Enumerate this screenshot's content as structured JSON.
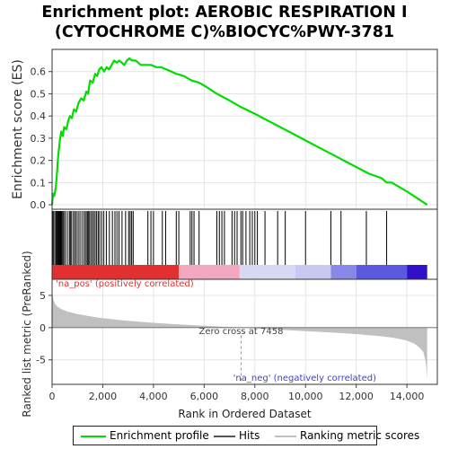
{
  "title_line1": "Enrichment plot: AEROBIC RESPIRATION I",
  "title_line2": "(CYTOCHROME C)%BIOCYC%PWY-3781",
  "chart_data": {
    "type": "line",
    "es_panel": {
      "ylabel": "Enrichment score (ES)",
      "ylim": [
        -0.02,
        0.7
      ],
      "yticks": [
        0.0,
        0.1,
        0.2,
        0.3,
        0.4,
        0.5,
        0.6
      ],
      "ytick_labels": [
        "0.0",
        "0.1",
        "0.2",
        "0.3",
        "0.4",
        "0.5",
        "0.6"
      ],
      "grid": true,
      "series": [
        {
          "name": "Enrichment profile",
          "color": "#00dd00",
          "x": [
            0,
            40,
            90,
            150,
            200,
            240,
            280,
            320,
            360,
            420,
            480,
            560,
            640,
            700,
            780,
            860,
            950,
            1050,
            1150,
            1250,
            1350,
            1420,
            1500,
            1600,
            1700,
            1780,
            1860,
            1950,
            2050,
            2150,
            2250,
            2350,
            2450,
            2550,
            2650,
            2750,
            2850,
            2950,
            3050,
            3150,
            3300,
            3500,
            3700,
            3900,
            4100,
            4300,
            4500,
            4700,
            4900,
            5200,
            5500,
            5800,
            6100,
            6500,
            7000,
            7458,
            8000,
            8500,
            9000,
            9500,
            10000,
            10500,
            11000,
            11500,
            12000,
            12500,
            13000,
            13200,
            13400,
            13700,
            14000,
            14400,
            14800
          ],
          "values": [
            0.0,
            0.05,
            0.04,
            0.08,
            0.15,
            0.22,
            0.26,
            0.3,
            0.33,
            0.31,
            0.35,
            0.34,
            0.38,
            0.4,
            0.39,
            0.43,
            0.42,
            0.46,
            0.48,
            0.47,
            0.51,
            0.5,
            0.56,
            0.55,
            0.59,
            0.58,
            0.61,
            0.62,
            0.6,
            0.62,
            0.61,
            0.63,
            0.65,
            0.64,
            0.65,
            0.64,
            0.63,
            0.65,
            0.66,
            0.65,
            0.65,
            0.63,
            0.63,
            0.63,
            0.62,
            0.62,
            0.61,
            0.6,
            0.59,
            0.58,
            0.56,
            0.55,
            0.53,
            0.5,
            0.47,
            0.44,
            0.41,
            0.38,
            0.35,
            0.32,
            0.29,
            0.26,
            0.23,
            0.2,
            0.17,
            0.14,
            0.12,
            0.1,
            0.1,
            0.08,
            0.06,
            0.03,
            0.0
          ]
        }
      ]
    },
    "hits": [
      20,
      60,
      110,
      160,
      190,
      230,
      260,
      290,
      320,
      350,
      380,
      420,
      460,
      520,
      600,
      680,
      720,
      770,
      840,
      900,
      960,
      1030,
      1100,
      1180,
      1260,
      1320,
      1380,
      1420,
      1460,
      1520,
      1580,
      1640,
      1700,
      1760,
      1820,
      1880,
      1960,
      2040,
      2140,
      2260,
      2380,
      2480,
      2560,
      2640,
      2760,
      2900,
      3020,
      3080,
      3140,
      3200,
      3780,
      3900,
      4000,
      4350,
      4480,
      4900,
      5000,
      5450,
      5520,
      5600,
      5800,
      6500,
      6600,
      6700,
      6800,
      7100,
      7200,
      7300,
      7450,
      7520,
      7650,
      7800,
      7900,
      8000,
      8100,
      8400,
      8900,
      9200,
      10000,
      11000,
      11400,
      12400,
      13200
    ],
    "heatmap_bar": {
      "segments": [
        {
          "from": 0,
          "to": 5000,
          "color": "#e23030"
        },
        {
          "from": 5000,
          "to": 7400,
          "color": "#f4a8c0"
        },
        {
          "from": 7400,
          "to": 9600,
          "color": "#d8d8f4"
        },
        {
          "from": 9600,
          "to": 11000,
          "color": "#c8c8f0"
        },
        {
          "from": 11000,
          "to": 12000,
          "color": "#8888e8"
        },
        {
          "from": 12000,
          "to": 14000,
          "color": "#5a5ae0"
        },
        {
          "from": 14000,
          "to": 14800,
          "color": "#3010c8"
        }
      ]
    },
    "ranked_panel": {
      "ylabel": "Ranked list metric (PreRanked)",
      "xlabel": "Rank in Ordered Dataset",
      "ylim": [
        -8.8,
        7.5
      ],
      "yticks": [
        5,
        0,
        -5
      ],
      "ytick_labels": [
        "5",
        "0",
        "-5"
      ],
      "xlim": [
        0,
        15200
      ],
      "xticks": [
        0,
        2000,
        4000,
        6000,
        8000,
        10000,
        12000,
        14000
      ],
      "xtick_labels": [
        "0",
        "2,000",
        "4,000",
        "6,000",
        "8,000",
        "10,000",
        "12,000",
        "14,000"
      ],
      "series": [
        {
          "name": "Ranking metric scores",
          "color": "#c0c0c0",
          "x": [
            0,
            20,
            60,
            120,
            200,
            350,
            600,
            1000,
            1500,
            2000,
            3000,
            4000,
            5000,
            6000,
            7000,
            7458,
            8000,
            9000,
            10000,
            11000,
            12000,
            13000,
            13500,
            14000,
            14300,
            14500,
            14650,
            14750,
            14800
          ],
          "values": [
            6.2,
            5.0,
            4.2,
            3.7,
            3.3,
            2.9,
            2.5,
            2.1,
            1.75,
            1.45,
            1.05,
            0.75,
            0.5,
            0.3,
            0.1,
            0.0,
            -0.15,
            -0.35,
            -0.55,
            -0.75,
            -1.0,
            -1.35,
            -1.6,
            -2.0,
            -2.5,
            -3.1,
            -3.8,
            -5.5,
            -8.0
          ]
        }
      ],
      "annotations": {
        "pos_label": "'na_pos' (positively correlated)",
        "neg_label": "'na_neg' (negatively correlated)",
        "zero_cross_label": "Zero cross at 7458",
        "zero_cross": 7458
      }
    },
    "legend": [
      {
        "label": "Enrichment profile",
        "color": "#00dd00"
      },
      {
        "label": "Hits",
        "color": "#555555"
      },
      {
        "label": "Ranking metric scores",
        "color": "#c0c0c0"
      }
    ]
  }
}
